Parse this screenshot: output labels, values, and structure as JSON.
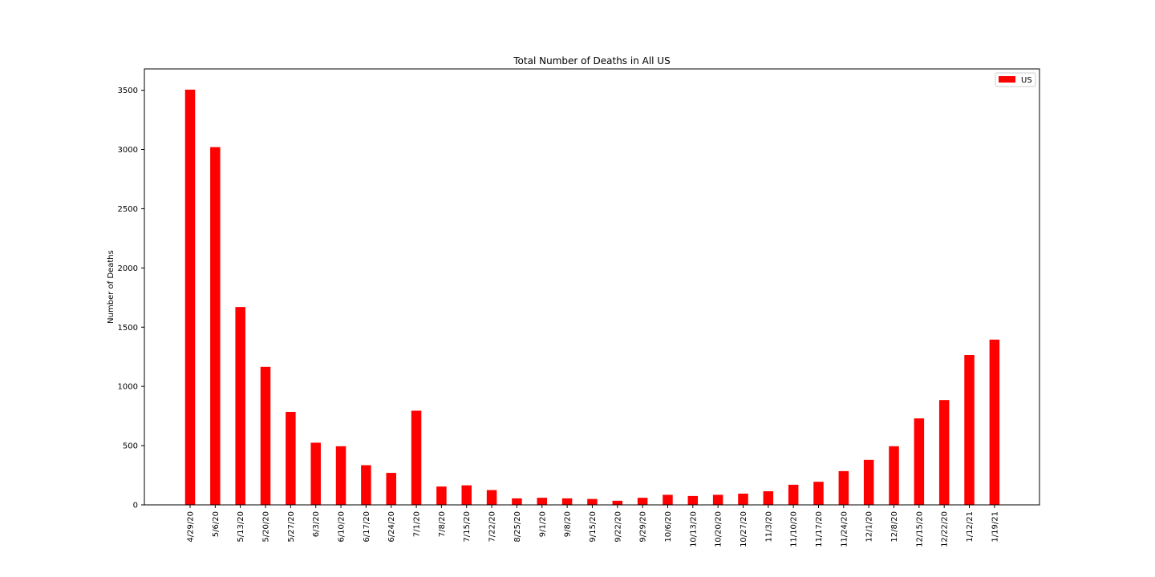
{
  "chart_data": {
    "type": "bar",
    "title": "Total Number of Deaths in All US",
    "xlabel": "",
    "ylabel": "Number of Deaths",
    "ylim": [
      0,
      3680
    ],
    "yticks": [
      0,
      500,
      1000,
      1500,
      2000,
      2500,
      3000,
      3500
    ],
    "grid": false,
    "legend_position": "top-right",
    "categories": [
      "4/29/20",
      "5/6/20",
      "5/13/20",
      "5/20/20",
      "5/27/20",
      "6/3/20",
      "6/10/20",
      "6/17/20",
      "6/24/20",
      "7/1/20",
      "7/8/20",
      "7/15/20",
      "7/22/20",
      "8/25/20",
      "9/1/20",
      "9/8/20",
      "9/15/20",
      "9/22/20",
      "9/29/20",
      "10/6/20",
      "10/13/20",
      "10/20/20",
      "10/27/20",
      "11/3/20",
      "11/10/20",
      "11/17/20",
      "11/24/20",
      "12/1/20",
      "12/8/20",
      "12/15/20",
      "12/22/20",
      "1/12/21",
      "1/19/21"
    ],
    "series": [
      {
        "name": "US",
        "color": "#ff0000",
        "values": [
          3505,
          3020,
          1670,
          1165,
          785,
          525,
          495,
          335,
          270,
          795,
          155,
          165,
          125,
          55,
          60,
          55,
          50,
          35,
          60,
          85,
          75,
          85,
          95,
          115,
          170,
          195,
          285,
          380,
          495,
          730,
          885,
          1265,
          1395
        ]
      }
    ]
  }
}
